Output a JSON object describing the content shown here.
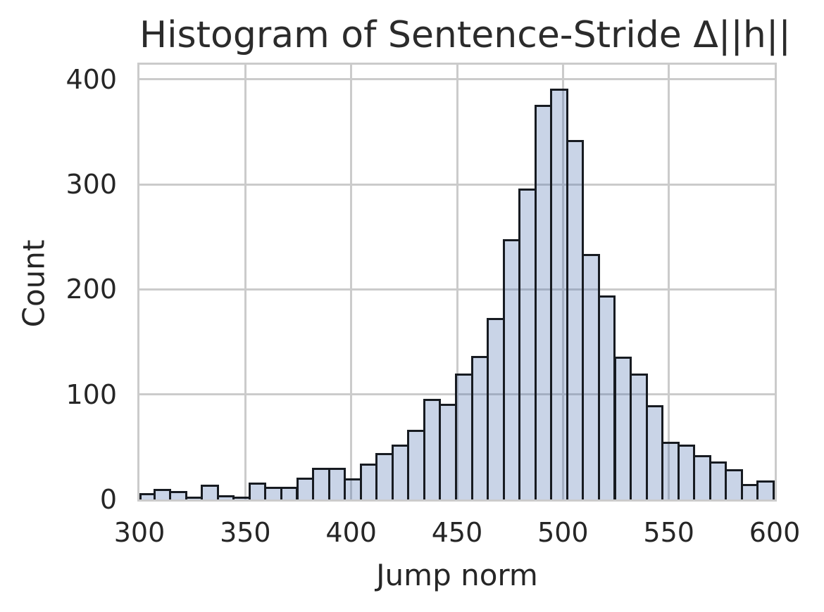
{
  "figure": {
    "background": "#ffffff"
  },
  "chart_data": {
    "type": "bar",
    "subtype": "histogram",
    "title": "Histogram of Sentence-Stride Δ||h||",
    "xlabel": "Jump norm",
    "ylabel": "Count",
    "xlim": [
      300,
      600
    ],
    "ylim": [
      0,
      414
    ],
    "x_ticks": [
      300,
      350,
      400,
      450,
      500,
      550,
      600
    ],
    "y_ticks": [
      0,
      100,
      200,
      300,
      400
    ],
    "grid": true,
    "legend": false,
    "bin_start": 300,
    "bin_width": 7.5,
    "num_bins": 40,
    "counts": [
      6,
      10,
      8,
      3,
      14,
      4,
      3,
      16,
      12,
      12,
      21,
      30,
      30,
      20,
      34,
      44,
      52,
      66,
      96,
      91,
      120,
      137,
      173,
      248,
      296,
      376,
      391,
      342,
      234,
      194,
      136,
      120,
      90,
      55,
      52,
      42,
      36,
      29,
      15,
      18
    ],
    "colors": {
      "bar_fill": "rgba(76,114,176,0.30)",
      "bar_edge": "#171b21",
      "grid": "#cbcbcb",
      "spine": "#cbcbcb",
      "text": "#262626",
      "title_text": "#2b2b2b"
    }
  }
}
